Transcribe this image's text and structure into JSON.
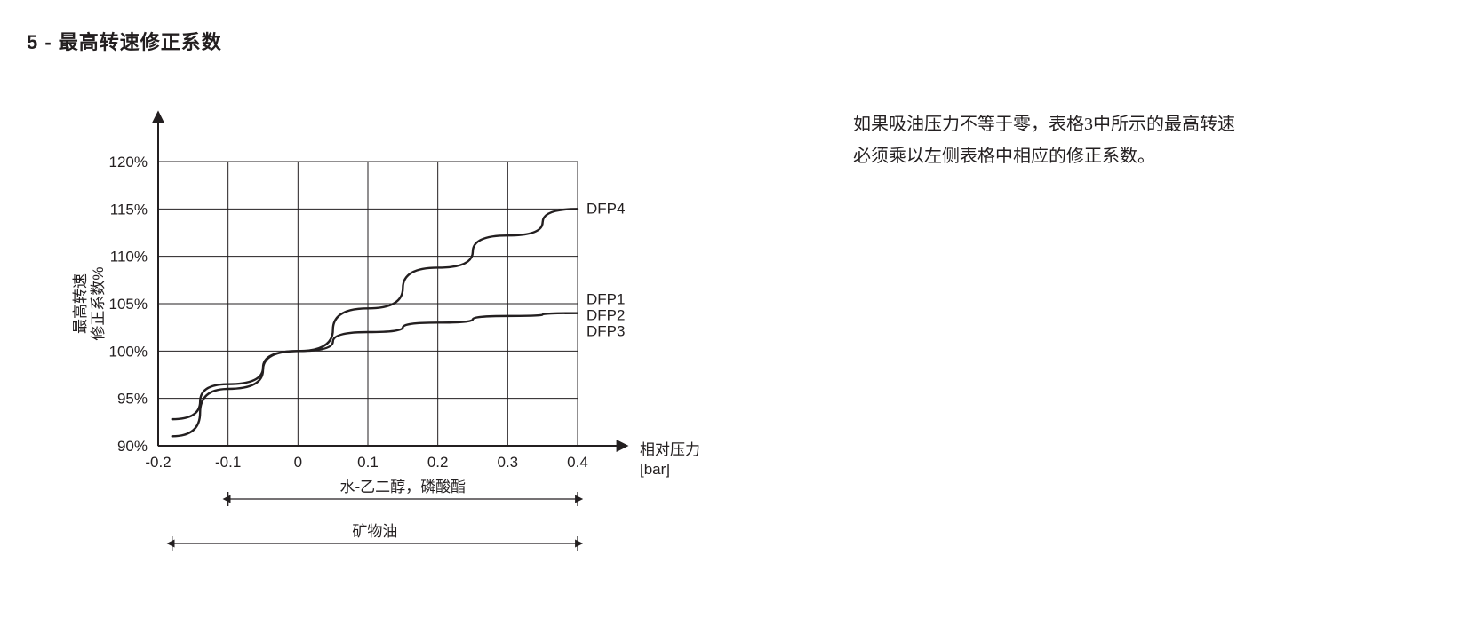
{
  "section_title": "5 - 最高转速修正系数",
  "description": {
    "line1": "如果吸油压力不等于零，表格3中所示的最高转速",
    "line2": "必须乘以左侧表格中相应的修正系数。"
  },
  "chart": {
    "type": "line",
    "background_color": "#ffffff",
    "axis_color": "#231f20",
    "grid_color": "#231f20",
    "curve_color": "#231f20",
    "curve_width": 2.4,
    "grid_width": 1,
    "axis_width": 2,
    "label_fontsize": 17,
    "ylabel_line1": "最高转速",
    "ylabel_line2": "修正系数%",
    "xlabel_line1": "相对压力",
    "xlabel_line2": "[bar]",
    "y_ticks": [
      90,
      95,
      100,
      105,
      110,
      115,
      120
    ],
    "y_tick_labels": [
      "90%",
      "95%",
      "100%",
      "105%",
      "110%",
      "115%",
      "120%"
    ],
    "ylim": [
      90,
      120
    ],
    "x_ticks": [
      -0.2,
      -0.1,
      0,
      0.1,
      0.2,
      0.3,
      0.4
    ],
    "x_tick_labels": [
      "-0.2",
      "-0.1",
      "0",
      "0.1",
      "0.2",
      "0.3",
      "0.4"
    ],
    "xlim": [
      -0.2,
      0.4
    ],
    "series": {
      "DFP4": {
        "label": "DFP4",
        "points": [
          [
            -0.18,
            91.0
          ],
          [
            -0.1,
            96.0
          ],
          [
            0.0,
            100.0
          ],
          [
            0.1,
            104.5
          ],
          [
            0.2,
            108.8
          ],
          [
            0.3,
            112.2
          ],
          [
            0.4,
            115.0
          ]
        ]
      },
      "DFP1_3": {
        "labels": [
          "DFP1",
          "DFP2",
          "DFP3"
        ],
        "points": [
          [
            -0.18,
            92.8
          ],
          [
            -0.1,
            96.5
          ],
          [
            0.0,
            100.0
          ],
          [
            0.1,
            102.0
          ],
          [
            0.2,
            103.0
          ],
          [
            0.3,
            103.7
          ],
          [
            0.4,
            104.0
          ]
        ]
      }
    },
    "brackets": {
      "upper": {
        "label": "水-乙二醇，磷酸酯",
        "x_from": -0.1,
        "x_to": 0.4
      },
      "lower": {
        "label": "矿物油",
        "x_from": -0.18,
        "x_to": 0.4
      }
    }
  }
}
